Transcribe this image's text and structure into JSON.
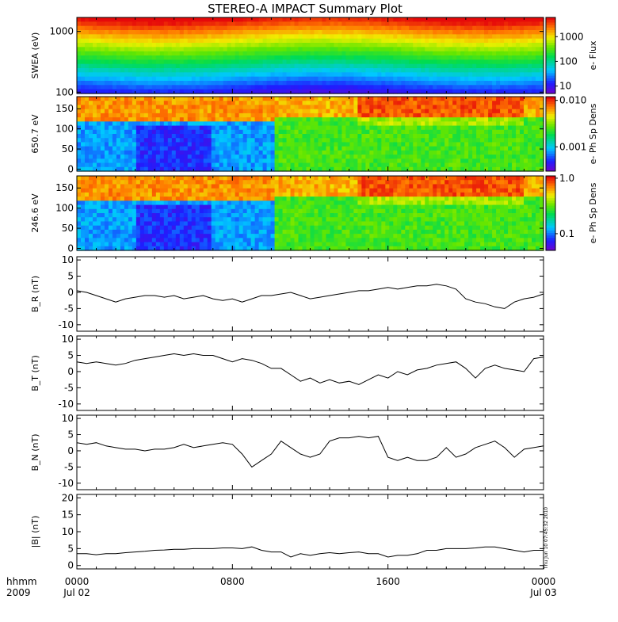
{
  "title": "STEREO-A IMPACT Summary Plot",
  "timestamp": "Thu Jun 10 07:45:32 2010",
  "x_axis": {
    "tick_labels_top": [
      "0000",
      "0800",
      "1600",
      "0000"
    ],
    "tick_labels_bottom": [
      "Jul 02",
      "",
      "",
      "Jul 03"
    ],
    "corner_label_top": "hhmm",
    "corner_label_bottom": "2009",
    "range_hours": [
      0,
      24
    ]
  },
  "chart_data": [
    {
      "type": "heatmap",
      "ylabel": "SWEA (eV)",
      "ylog": true,
      "ylim": [
        95,
        1700
      ],
      "yticks": [
        100,
        1000
      ],
      "ytick_labels": [
        "100",
        "1000"
      ],
      "colorbar": {
        "label": "e- Flux",
        "log": true,
        "range": [
          5,
          6000
        ],
        "ticks": [
          10,
          100,
          1000
        ],
        "tick_labels": [
          "10",
          "100",
          "1000"
        ]
      }
    },
    {
      "type": "heatmap",
      "ylabel": "650.7 eV",
      "ylim": [
        -5,
        180
      ],
      "yticks": [
        0,
        50,
        100,
        150
      ],
      "ytick_labels": [
        "0",
        "50",
        "100",
        "150"
      ],
      "colorbar": {
        "label": "e- Ph Sp Dens",
        "log": true,
        "range": [
          0.0003,
          0.012
        ],
        "ticks": [
          0.001,
          0.01
        ],
        "tick_labels": [
          "0.001",
          "0.010"
        ]
      }
    },
    {
      "type": "heatmap",
      "ylabel": "246.6 eV",
      "ylim": [
        -5,
        180
      ],
      "yticks": [
        0,
        50,
        100,
        150
      ],
      "ytick_labels": [
        "0",
        "50",
        "100",
        "150"
      ],
      "colorbar": {
        "label": "e- Ph Sp Dens",
        "log": true,
        "range": [
          0.05,
          1.1
        ],
        "ticks": [
          0.1,
          1.0
        ],
        "tick_labels": [
          "0.1",
          "1.0"
        ]
      }
    },
    {
      "type": "line",
      "ylabel": "B_R (nT)",
      "ylim": [
        -12,
        11
      ],
      "yticks": [
        -10,
        -5,
        0,
        5,
        10
      ],
      "ytick_labels": [
        "-10",
        "-5",
        "0",
        "5",
        "10"
      ],
      "x": [
        0,
        0.5,
        1,
        1.5,
        2,
        2.5,
        3,
        3.5,
        4,
        4.5,
        5,
        5.5,
        6,
        6.5,
        7,
        7.5,
        8,
        8.5,
        9,
        9.5,
        10,
        10.5,
        11,
        11.5,
        12,
        12.5,
        13,
        13.5,
        14,
        14.5,
        15,
        15.5,
        16,
        16.5,
        17,
        17.5,
        18,
        18.5,
        19,
        19.5,
        20,
        20.5,
        21,
        21.5,
        22,
        22.5,
        23,
        23.5,
        24
      ],
      "values": [
        0.5,
        0,
        -1,
        -2,
        -3,
        -2,
        -1.5,
        -1,
        -1,
        -1.5,
        -1,
        -2,
        -1.5,
        -1,
        -2,
        -2.5,
        -2,
        -3,
        -2,
        -1,
        -1,
        -0.5,
        0,
        -1,
        -2,
        -1.5,
        -1,
        -0.5,
        0,
        0.5,
        0.5,
        1,
        1.5,
        1,
        1.5,
        2,
        2,
        2.5,
        2,
        1,
        -2,
        -3,
        -3.5,
        -4.5,
        -5,
        -3,
        -2,
        -1.5,
        -0.5
      ]
    },
    {
      "type": "line",
      "ylabel": "B_T (nT)",
      "ylim": [
        -12,
        11
      ],
      "yticks": [
        -10,
        -5,
        0,
        5,
        10
      ],
      "ytick_labels": [
        "-10",
        "-5",
        "0",
        "5",
        "10"
      ],
      "x": [
        0,
        0.5,
        1,
        1.5,
        2,
        2.5,
        3,
        3.5,
        4,
        4.5,
        5,
        5.5,
        6,
        6.5,
        7,
        7.5,
        8,
        8.5,
        9,
        9.5,
        10,
        10.5,
        11,
        11.5,
        12,
        12.5,
        13,
        13.5,
        14,
        14.5,
        15,
        15.5,
        16,
        16.5,
        17,
        17.5,
        18,
        18.5,
        19,
        19.5,
        20,
        20.5,
        21,
        21.5,
        22,
        22.5,
        23,
        23.5,
        24
      ],
      "values": [
        3,
        2.5,
        3,
        2.5,
        2,
        2.5,
        3.5,
        4,
        4.5,
        5,
        5.5,
        5,
        5.5,
        5,
        5,
        4,
        3,
        4,
        3.5,
        2.5,
        1,
        1,
        -1,
        -3,
        -2,
        -3.5,
        -2.5,
        -3.5,
        -3,
        -4,
        -2.5,
        -1,
        -2,
        0,
        -1,
        0.5,
        1,
        2,
        2.5,
        3,
        1,
        -2,
        1,
        2,
        1,
        0.5,
        0,
        4,
        4.5
      ]
    },
    {
      "type": "line",
      "ylabel": "B_N (nT)",
      "ylim": [
        -12,
        11
      ],
      "yticks": [
        -10,
        -5,
        0,
        5,
        10
      ],
      "ytick_labels": [
        "-10",
        "-5",
        "0",
        "5",
        "10"
      ],
      "x": [
        0,
        0.5,
        1,
        1.5,
        2,
        2.5,
        3,
        3.5,
        4,
        4.5,
        5,
        5.5,
        6,
        6.5,
        7,
        7.5,
        8,
        8.5,
        9,
        9.5,
        10,
        10.5,
        11,
        11.5,
        12,
        12.5,
        13,
        13.5,
        14,
        14.5,
        15,
        15.5,
        16,
        16.5,
        17,
        17.5,
        18,
        18.5,
        19,
        19.5,
        20,
        20.5,
        21,
        21.5,
        22,
        22.5,
        23,
        23.5,
        24
      ],
      "values": [
        2.5,
        2,
        2.5,
        1.5,
        1,
        0.5,
        0.5,
        0,
        0.5,
        0.5,
        1,
        2,
        1,
        1.5,
        2,
        2.5,
        2,
        -1,
        -5,
        -3,
        -1,
        3,
        1,
        -1,
        -2,
        -1,
        3,
        4,
        4,
        4.5,
        4,
        4.5,
        -2,
        -3,
        -2,
        -3,
        -3,
        -2,
        1,
        -2,
        -1,
        1,
        2,
        3,
        1,
        -2,
        0.5,
        1,
        1.5
      ]
    },
    {
      "type": "line",
      "ylabel": "|B| (nT)",
      "ylim": [
        -1,
        21
      ],
      "yticks": [
        0,
        5,
        10,
        15,
        20
      ],
      "ytick_labels": [
        "0",
        "5",
        "10",
        "15",
        "20"
      ],
      "x": [
        0,
        0.5,
        1,
        1.5,
        2,
        2.5,
        3,
        3.5,
        4,
        4.5,
        5,
        5.5,
        6,
        6.5,
        7,
        7.5,
        8,
        8.5,
        9,
        9.5,
        10,
        10.5,
        11,
        11.5,
        12,
        12.5,
        13,
        13.5,
        14,
        14.5,
        15,
        15.5,
        16,
        16.5,
        17,
        17.5,
        18,
        18.5,
        19,
        19.5,
        20,
        20.5,
        21,
        21.5,
        22,
        22.5,
        23,
        23.5,
        24
      ],
      "values": [
        3.5,
        3.5,
        3.2,
        3.5,
        3.5,
        3.8,
        4,
        4.2,
        4.5,
        4.6,
        4.8,
        4.8,
        5,
        5,
        5,
        5.2,
        5.2,
        5,
        5.5,
        4.5,
        4,
        4,
        2.5,
        3.5,
        3,
        3.5,
        3.8,
        3.5,
        3.8,
        4,
        3.5,
        3.5,
        2.5,
        3,
        3,
        3.5,
        4.5,
        4.5,
        5,
        5,
        5,
        5.2,
        5.5,
        5.5,
        5,
        4.5,
        4,
        4.5,
        4.5
      ]
    }
  ]
}
